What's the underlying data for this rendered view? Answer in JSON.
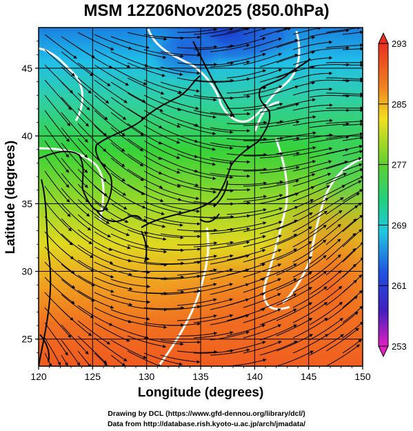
{
  "title": "MSM 12Z06Nov2025 (850.0hPa)",
  "map": {
    "xlabel": "Longitude (degrees)",
    "ylabel": "Latitude  (degrees)",
    "lon_range": [
      120,
      150
    ],
    "lat_range": [
      23,
      48
    ],
    "lon_ticks": [
      "120",
      "125",
      "130",
      "135",
      "140",
      "145",
      "150"
    ],
    "lat_ticks": [
      "25",
      "30",
      "35",
      "40",
      "45"
    ],
    "grid": true
  },
  "colorbar": {
    "range": [
      253,
      293
    ],
    "tick_labels": [
      "293",
      "285",
      "277",
      "269",
      "261",
      "253"
    ]
  },
  "credits": {
    "line1": "Drawing by DCL (https://www.gfd-dennou.org/library/dcl/)",
    "line2": "Data from http://database.rish.kyoto-u.ac.jp/arch/jmadata/"
  }
}
